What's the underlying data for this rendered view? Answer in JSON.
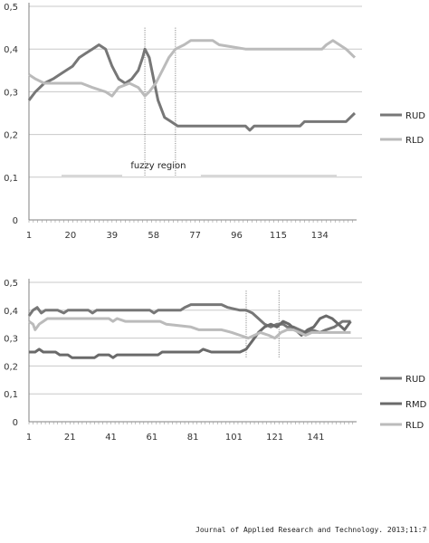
{
  "citation": "Journal of Applied Research and Technology. 2013;11:702-7",
  "chart_data": [
    {
      "type": "line",
      "ylim": [
        0,
        0.5
      ],
      "yticks": [
        "0",
        "0,1",
        "0,2",
        "0,3",
        "0,4",
        "0,5"
      ],
      "xlim": [
        1,
        150
      ],
      "xticks": [
        "1",
        "20",
        "39",
        "58",
        "77",
        "96",
        "115",
        "134"
      ],
      "grid": true,
      "legend_position": "right",
      "annotation": {
        "text": "fuzzy region",
        "x_start": 54,
        "x_end": 68
      },
      "series": [
        {
          "name": "RUD",
          "color": "#777777",
          "points": [
            [
              1,
              0.28
            ],
            [
              4,
              0.3
            ],
            [
              8,
              0.32
            ],
            [
              12,
              0.33
            ],
            [
              15,
              0.34
            ],
            [
              18,
              0.35
            ],
            [
              21,
              0.36
            ],
            [
              24,
              0.38
            ],
            [
              27,
              0.39
            ],
            [
              30,
              0.4
            ],
            [
              33,
              0.41
            ],
            [
              36,
              0.4
            ],
            [
              39,
              0.36
            ],
            [
              42,
              0.33
            ],
            [
              45,
              0.32
            ],
            [
              48,
              0.33
            ],
            [
              51,
              0.35
            ],
            [
              53,
              0.38
            ],
            [
              54,
              0.4
            ],
            [
              56,
              0.38
            ],
            [
              58,
              0.33
            ],
            [
              60,
              0.28
            ],
            [
              63,
              0.24
            ],
            [
              66,
              0.23
            ],
            [
              69,
              0.22
            ],
            [
              80,
              0.22
            ],
            [
              100,
              0.22
            ],
            [
              102,
              0.21
            ],
            [
              104,
              0.22
            ],
            [
              125,
              0.22
            ],
            [
              127,
              0.23
            ],
            [
              146,
              0.23
            ],
            [
              148,
              0.24
            ],
            [
              150,
              0.25
            ]
          ]
        },
        {
          "name": "RLD",
          "color": "#bbbbbb",
          "points": [
            [
              1,
              0.34
            ],
            [
              4,
              0.33
            ],
            [
              8,
              0.32
            ],
            [
              15,
              0.32
            ],
            [
              25,
              0.32
            ],
            [
              30,
              0.31
            ],
            [
              36,
              0.3
            ],
            [
              39,
              0.29
            ],
            [
              42,
              0.31
            ],
            [
              47,
              0.32
            ],
            [
              51,
              0.31
            ],
            [
              54,
              0.29
            ],
            [
              56,
              0.3
            ],
            [
              59,
              0.32
            ],
            [
              62,
              0.35
            ],
            [
              65,
              0.38
            ],
            [
              68,
              0.4
            ],
            [
              72,
              0.41
            ],
            [
              75,
              0.42
            ],
            [
              85,
              0.42
            ],
            [
              88,
              0.41
            ],
            [
              100,
              0.4
            ],
            [
              120,
              0.4
            ],
            [
              135,
              0.4
            ],
            [
              137,
              0.41
            ],
            [
              140,
              0.42
            ],
            [
              143,
              0.41
            ],
            [
              146,
              0.4
            ],
            [
              148,
              0.39
            ],
            [
              150,
              0.38
            ]
          ]
        }
      ]
    },
    {
      "type": "line",
      "ylim": [
        0,
        0.5
      ],
      "yticks": [
        "0",
        "0,1",
        "0,2",
        "0,3",
        "0,4",
        "0,5"
      ],
      "xlim": [
        1,
        160
      ],
      "xticks": [
        "1",
        "21",
        "41",
        "61",
        "81",
        "101",
        "121",
        "141"
      ],
      "grid": true,
      "legend_position": "right",
      "markers": [
        107,
        123
      ],
      "series": [
        {
          "name": "RUD",
          "color": "#777777",
          "points": [
            [
              1,
              0.38
            ],
            [
              3,
              0.4
            ],
            [
              5,
              0.41
            ],
            [
              7,
              0.39
            ],
            [
              9,
              0.4
            ],
            [
              15,
              0.4
            ],
            [
              18,
              0.39
            ],
            [
              20,
              0.4
            ],
            [
              30,
              0.4
            ],
            [
              32,
              0.39
            ],
            [
              34,
              0.4
            ],
            [
              60,
              0.4
            ],
            [
              62,
              0.39
            ],
            [
              64,
              0.4
            ],
            [
              75,
              0.4
            ],
            [
              77,
              0.41
            ],
            [
              80,
              0.42
            ],
            [
              95,
              0.42
            ],
            [
              98,
              0.41
            ],
            [
              104,
              0.4
            ],
            [
              107,
              0.4
            ],
            [
              110,
              0.39
            ],
            [
              113,
              0.37
            ],
            [
              116,
              0.35
            ],
            [
              119,
              0.34
            ],
            [
              122,
              0.35
            ],
            [
              125,
              0.35
            ],
            [
              127,
              0.34
            ],
            [
              130,
              0.34
            ],
            [
              133,
              0.33
            ],
            [
              136,
              0.32
            ],
            [
              139,
              0.33
            ],
            [
              143,
              0.32
            ],
            [
              146,
              0.33
            ],
            [
              150,
              0.34
            ],
            [
              154,
              0.36
            ],
            [
              158,
              0.36
            ]
          ]
        },
        {
          "name": "RMD",
          "color": "#6a6a6a",
          "points": [
            [
              1,
              0.25
            ],
            [
              4,
              0.25
            ],
            [
              6,
              0.26
            ],
            [
              8,
              0.25
            ],
            [
              14,
              0.25
            ],
            [
              16,
              0.24
            ],
            [
              20,
              0.24
            ],
            [
              22,
              0.23
            ],
            [
              33,
              0.23
            ],
            [
              35,
              0.24
            ],
            [
              40,
              0.24
            ],
            [
              42,
              0.23
            ],
            [
              44,
              0.24
            ],
            [
              60,
              0.24
            ],
            [
              64,
              0.24
            ],
            [
              66,
              0.25
            ],
            [
              80,
              0.25
            ],
            [
              84,
              0.25
            ],
            [
              86,
              0.26
            ],
            [
              90,
              0.25
            ],
            [
              104,
              0.25
            ],
            [
              107,
              0.26
            ],
            [
              110,
              0.29
            ],
            [
              113,
              0.32
            ],
            [
              116,
              0.34
            ],
            [
              119,
              0.35
            ],
            [
              122,
              0.34
            ],
            [
              125,
              0.36
            ],
            [
              128,
              0.35
            ],
            [
              131,
              0.33
            ],
            [
              134,
              0.31
            ],
            [
              137,
              0.33
            ],
            [
              140,
              0.34
            ],
            [
              143,
              0.37
            ],
            [
              146,
              0.38
            ],
            [
              149,
              0.37
            ],
            [
              152,
              0.35
            ],
            [
              155,
              0.33
            ],
            [
              158,
              0.36
            ]
          ]
        },
        {
          "name": "RLD",
          "color": "#bbbbbb",
          "points": [
            [
              1,
              0.36
            ],
            [
              3,
              0.35
            ],
            [
              4,
              0.33
            ],
            [
              6,
              0.35
            ],
            [
              8,
              0.36
            ],
            [
              10,
              0.37
            ],
            [
              40,
              0.37
            ],
            [
              42,
              0.36
            ],
            [
              44,
              0.37
            ],
            [
              48,
              0.36
            ],
            [
              65,
              0.36
            ],
            [
              68,
              0.35
            ],
            [
              80,
              0.34
            ],
            [
              84,
              0.33
            ],
            [
              95,
              0.33
            ],
            [
              100,
              0.32
            ],
            [
              104,
              0.31
            ],
            [
              108,
              0.3
            ],
            [
              111,
              0.31
            ],
            [
              114,
              0.32
            ],
            [
              118,
              0.31
            ],
            [
              121,
              0.3
            ],
            [
              124,
              0.32
            ],
            [
              127,
              0.33
            ],
            [
              130,
              0.33
            ],
            [
              133,
              0.32
            ],
            [
              136,
              0.31
            ],
            [
              139,
              0.32
            ],
            [
              143,
              0.32
            ],
            [
              150,
              0.32
            ],
            [
              158,
              0.32
            ]
          ]
        }
      ]
    }
  ]
}
